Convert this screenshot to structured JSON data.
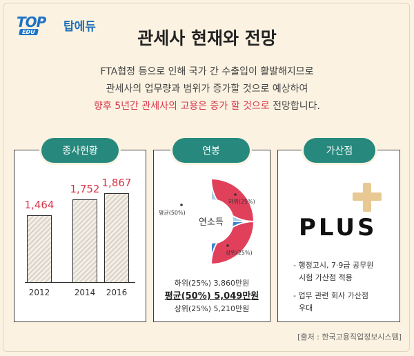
{
  "logo": {
    "top": "TOP",
    "edu": "EDU",
    "name": "탑에듀"
  },
  "title": "관세사 현재와 전망",
  "intro": {
    "line1": "FTA협정 등으로 인해 국가 간 수출입이 활발해지므로",
    "line2": "관세사의 업무량과 범위가 증가할 것으로 예상하여",
    "line3_highlight": "향후 5년간 관세사의 고용은 증가 할 것으로",
    "line3_rest": " 전망합니다."
  },
  "colors": {
    "accent": "#d7354a",
    "pill": "#27897e",
    "donut_red": "#e0405a",
    "donut_blue": "#3a82cf",
    "donut_light": "#a9cce6",
    "plus_gold": "#e9c993"
  },
  "employment": {
    "label": "종사현황",
    "chart_data": {
      "type": "bar",
      "categories": [
        "2012",
        "2014",
        "2016"
      ],
      "values": [
        1464,
        1752,
        1867
      ],
      "value_labels": [
        "1,464",
        "1,752",
        "1,867"
      ]
    }
  },
  "salary": {
    "label": "연봉",
    "center": "연소득",
    "chart_data": {
      "type": "pie",
      "slices": [
        {
          "label": "평균(50%)",
          "value": 50
        },
        {
          "label": "하위(25%)",
          "value": 25
        },
        {
          "label": "상위(25%)",
          "value": 25
        }
      ]
    },
    "lower": "하위(25%) 3,860만원",
    "average": "평균(50%) 5,049만원",
    "upper": "상위(25%) 5,210만원"
  },
  "bonus": {
    "label": "가산점",
    "plus_text": "PLUS",
    "item1_line1": "- 행정고시, 7·9급 공무원",
    "item1_line2": "시험 가산점 적용",
    "item2_line1": "- 업무 관련 회사 가산점",
    "item2_line2": "우대"
  },
  "source": "[출처 : 한국고용직업정보시스템]"
}
